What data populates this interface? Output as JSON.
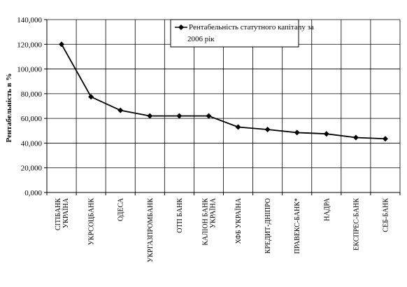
{
  "chart_data": {
    "type": "line",
    "title": "",
    "xlabel": "",
    "ylabel": "Рентабельність в %",
    "ylim": [
      0,
      140
    ],
    "yticks": [
      0,
      20,
      40,
      60,
      80,
      100,
      120,
      140
    ],
    "ytick_labels": [
      "0,000",
      "20,000",
      "40,000",
      "60,000",
      "80,000",
      "100,000",
      "120,000",
      "140,000"
    ],
    "grid": true,
    "legend_position": "top-center",
    "categories": [
      [
        "СІТІБАНК",
        "УКРАЇНА"
      ],
      [
        "УКРСОЦБАНК"
      ],
      [
        "ОДЕСА"
      ],
      [
        "УКРГАЗПРОМБАНК"
      ],
      [
        "ОТП БАНК"
      ],
      [
        "КАЛІОН БАНК",
        "УКРАЇНА"
      ],
      [
        "ХФБ УКРАЇНА"
      ],
      [
        "КРЕДИТ-ДНІПРО"
      ],
      [
        "ПРАВЕКС-БАНК*"
      ],
      [
        "НАДРА"
      ],
      [
        "ЕКСПРЕС-БАНК"
      ],
      [
        "СЕБ-БАНК"
      ]
    ],
    "series": [
      {
        "name": "Рентабельність статутного капіталу за 2006 рік",
        "legend_lines": [
          "Рентабельність статутного капіталу за",
          "2006 рік"
        ],
        "values": [
          120,
          77.5,
          66.5,
          62,
          62,
          62,
          53,
          51,
          48.5,
          47.5,
          44.5,
          43.5
        ],
        "color": "#000000",
        "marker": "diamond"
      }
    ]
  }
}
